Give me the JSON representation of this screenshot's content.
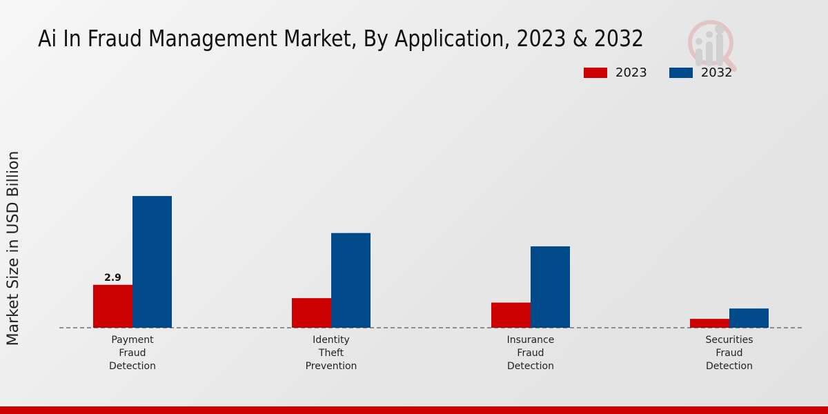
{
  "colors": {
    "2023": "#cc0000",
    "2032": "#004a8c",
    "accent": "#cc0000"
  },
  "chart_data": {
    "type": "bar",
    "title": "Ai In Fraud Management Market, By Application, 2023 & 2032",
    "xlabel": "",
    "ylabel": "Market Size in USD Billion",
    "categories": [
      "Payment Fraud Detection",
      "Identity Theft Prevention",
      "Insurance Fraud Detection",
      "Securities Fraud Detection"
    ],
    "category_lines": [
      [
        "Payment",
        "Fraud",
        "Detection"
      ],
      [
        "Identity",
        "Theft",
        "Prevention"
      ],
      [
        "Insurance",
        "Fraud",
        "Detection"
      ],
      [
        "Securities",
        "Fraud",
        "Detection"
      ]
    ],
    "series": [
      {
        "name": "2023",
        "values": [
          2.9,
          2.0,
          1.7,
          0.6
        ]
      },
      {
        "name": "2032",
        "values": [
          8.9,
          6.4,
          5.5,
          1.3
        ]
      }
    ],
    "data_labels": [
      {
        "series": "2023",
        "category": "Payment Fraud Detection",
        "text": "2.9"
      }
    ],
    "ylim": [
      0,
      10
    ],
    "grid": false,
    "legend_position": "top-right"
  }
}
